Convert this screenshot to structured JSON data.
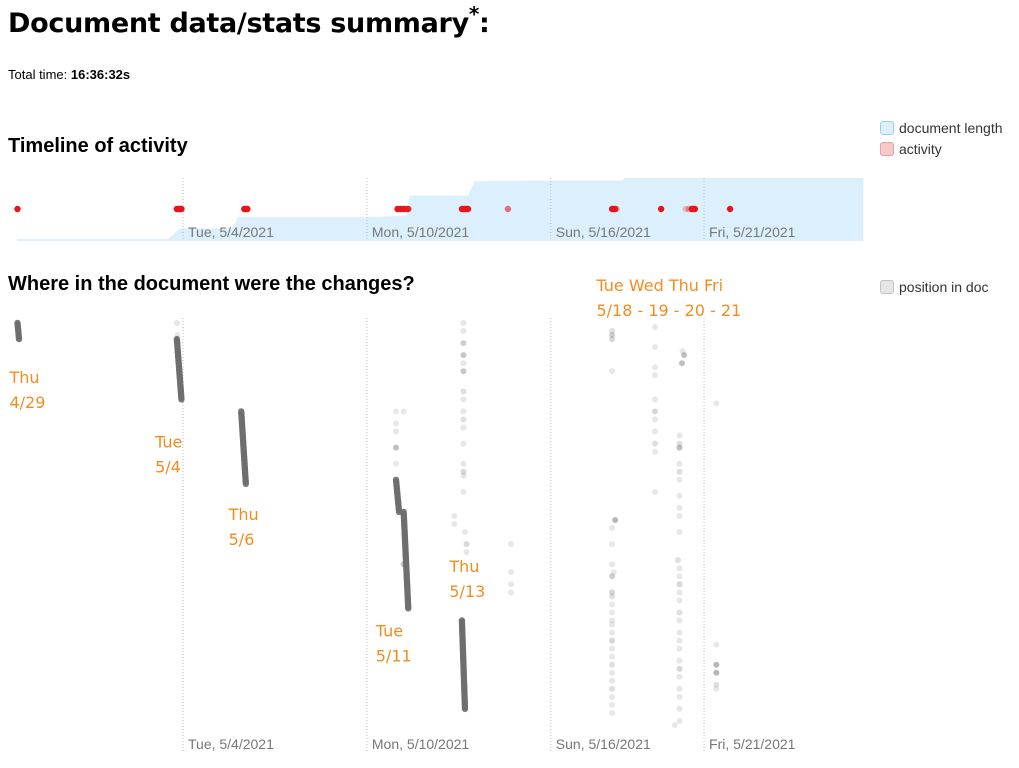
{
  "header": {
    "title": "Document data/stats summary",
    "title_mark": "*",
    "title_suffix": ":",
    "total_time_label": "Total time:",
    "total_time_value": "16:36:32s"
  },
  "sections": {
    "timeline_title": "Timeline of activity",
    "position_title": "Where in the document were the changes?"
  },
  "colors": {
    "doc_length_fill": "#dbf0fc",
    "doc_length_border": "#9fcbe6",
    "activity": "#e8141c",
    "activity_border": "#e8a0a0",
    "activity_fill": "#f9c9c9",
    "position": "#6e6e6e",
    "position_swatch": "#e6e6e6",
    "annotation": "#f28c1e",
    "gridline": "#bbbbbb",
    "tick_text": "#777777"
  },
  "chart_data": [
    {
      "type": "area",
      "name": "timeline-of-activity",
      "title": "Timeline of activity",
      "x_unit": "days relative to Tue 5/4/2021",
      "xlim": [
        -5.4,
        22.2
      ],
      "ticks": [
        {
          "x": 0,
          "label": "Tue, 5/4/2021"
        },
        {
          "x": 6,
          "label": "Mon, 5/10/2021"
        },
        {
          "x": 12,
          "label": "Sun, 5/16/2021"
        },
        {
          "x": 17,
          "label": "Fri, 5/21/2021"
        }
      ],
      "legend": [
        {
          "label": "document length",
          "key": "doc_length"
        },
        {
          "label": "activity",
          "key": "activity"
        }
      ],
      "legend_position": "top-right",
      "doc_length": {
        "ylim": [
          0,
          1
        ],
        "points": [
          [
            -5.4,
            0.03
          ],
          [
            -0.5,
            0.03
          ],
          [
            -0.1,
            0.2
          ],
          [
            1.6,
            0.2
          ],
          [
            1.8,
            0.38
          ],
          [
            6.0,
            0.38
          ],
          [
            7.3,
            0.4
          ],
          [
            7.4,
            0.72
          ],
          [
            9.3,
            0.72
          ],
          [
            9.5,
            0.95
          ],
          [
            11.5,
            0.96
          ],
          [
            14.3,
            0.96
          ],
          [
            14.4,
            1.0
          ],
          [
            22.2,
            1.0
          ]
        ]
      },
      "activity": {
        "x": [
          -5.4,
          -0.2,
          -0.15,
          -0.1,
          -0.05,
          2.0,
          2.05,
          2.1,
          7.0,
          7.1,
          7.2,
          7.3,
          7.35,
          9.1,
          9.15,
          9.2,
          9.25,
          9.3,
          10.6,
          14.0,
          14.05,
          14.1,
          14.15,
          15.6,
          16.4,
          16.5,
          16.6,
          16.65,
          16.7,
          17.85
        ],
        "opacity": [
          1,
          1,
          1,
          1,
          1,
          1,
          1,
          1,
          1,
          1,
          1,
          0.85,
          0.85,
          1,
          1,
          1,
          1,
          1,
          0.6,
          1,
          1,
          1,
          0.3,
          1,
          0.25,
          0.35,
          1,
          1,
          1,
          1
        ]
      }
    },
    {
      "type": "scatter",
      "name": "position-in-document",
      "title": "Where in the document were the changes?",
      "x_unit": "days relative to Tue 5/4/2021",
      "y_unit": "position in doc (0 = top, 1 = bottom)",
      "xlim": [
        -5.4,
        22.2
      ],
      "ylim": [
        0,
        1
      ],
      "ticks": [
        {
          "x": 0,
          "label": "Tue, 5/4/2021"
        },
        {
          "x": 6,
          "label": "Mon, 5/10/2021"
        },
        {
          "x": 12,
          "label": "Sun, 5/16/2021"
        },
        {
          "x": 17,
          "label": "Fri, 5/21/2021"
        }
      ],
      "legend": [
        {
          "label": "position in doc",
          "key": "position"
        }
      ],
      "legend_position": "top-right",
      "runs": [
        {
          "x0": -5.4,
          "x1": -5.35,
          "y0": 0.0,
          "y1": 0.04,
          "n": 10,
          "alpha": 0.9
        },
        {
          "x0": -0.2,
          "x1": -0.05,
          "y0": 0.04,
          "y1": 0.19,
          "n": 40,
          "alpha": 0.9
        },
        {
          "x0": 1.9,
          "x1": 2.05,
          "y0": 0.22,
          "y1": 0.4,
          "n": 45,
          "alpha": 0.9
        },
        {
          "x0": 6.95,
          "x1": 7.05,
          "y0": 0.39,
          "y1": 0.47,
          "n": 20,
          "alpha": 0.9
        },
        {
          "x0": 7.2,
          "x1": 7.35,
          "y0": 0.47,
          "y1": 0.71,
          "n": 60,
          "alpha": 0.9
        },
        {
          "x0": 9.1,
          "x1": 9.2,
          "y0": 0.74,
          "y1": 0.96,
          "n": 55,
          "alpha": 0.9
        }
      ],
      "points": [
        [
          -0.2,
          0.0,
          0.3
        ],
        [
          -0.18,
          0.03,
          0.3
        ],
        [
          6.95,
          0.22,
          0.3
        ],
        [
          6.95,
          0.25,
          0.3
        ],
        [
          6.95,
          0.27,
          0.3
        ],
        [
          7.2,
          0.22,
          0.3
        ],
        [
          6.95,
          0.31,
          0.8
        ],
        [
          6.95,
          0.35,
          0.3
        ],
        [
          7.25,
          0.58,
          0.3
        ],
        [
          7.2,
          0.6,
          0.8
        ],
        [
          9.15,
          0.0,
          0.3
        ],
        [
          9.15,
          0.02,
          0.3
        ],
        [
          9.15,
          0.05,
          0.6
        ],
        [
          9.15,
          0.08,
          0.7
        ],
        [
          9.15,
          0.1,
          0.3
        ],
        [
          9.15,
          0.12,
          0.7
        ],
        [
          9.15,
          0.17,
          0.4
        ],
        [
          9.15,
          0.19,
          0.3
        ],
        [
          9.15,
          0.22,
          0.3
        ],
        [
          9.15,
          0.24,
          0.4
        ],
        [
          9.15,
          0.26,
          0.3
        ],
        [
          9.15,
          0.3,
          0.3
        ],
        [
          9.15,
          0.35,
          0.3
        ],
        [
          9.15,
          0.37,
          0.5
        ],
        [
          9.15,
          0.38,
          0.3
        ],
        [
          9.15,
          0.42,
          0.3
        ],
        [
          8.85,
          0.48,
          0.3
        ],
        [
          8.85,
          0.5,
          0.3
        ],
        [
          9.2,
          0.52,
          0.3
        ],
        [
          9.25,
          0.55,
          0.5
        ],
        [
          9.25,
          0.57,
          0.3
        ],
        [
          10.7,
          0.55,
          0.3
        ],
        [
          10.7,
          0.62,
          0.3
        ],
        [
          10.7,
          0.65,
          0.3
        ],
        [
          10.7,
          0.67,
          0.3
        ],
        [
          14.0,
          0.02,
          0.4
        ],
        [
          14.0,
          0.03,
          0.6
        ],
        [
          14.0,
          0.04,
          0.5
        ],
        [
          14.0,
          0.12,
          0.3
        ],
        [
          14.1,
          0.49,
          0.9
        ],
        [
          14.0,
          0.51,
          0.3
        ],
        [
          14.0,
          0.55,
          0.3
        ],
        [
          14.0,
          0.6,
          0.3
        ],
        [
          14.05,
          0.62,
          0.3
        ],
        [
          14.0,
          0.63,
          0.6
        ],
        [
          14.0,
          0.67,
          0.5
        ],
        [
          14.0,
          0.68,
          0.4
        ],
        [
          14.0,
          0.7,
          0.3
        ],
        [
          14.0,
          0.72,
          0.3
        ],
        [
          14.0,
          0.74,
          0.3
        ],
        [
          14.0,
          0.75,
          0.3
        ],
        [
          14.0,
          0.77,
          0.3
        ],
        [
          14.0,
          0.79,
          0.5
        ],
        [
          14.0,
          0.81,
          0.3
        ],
        [
          14.0,
          0.83,
          0.3
        ],
        [
          14.0,
          0.85,
          0.4
        ],
        [
          14.0,
          0.87,
          0.3
        ],
        [
          14.0,
          0.89,
          0.3
        ],
        [
          14.0,
          0.91,
          0.4
        ],
        [
          14.0,
          0.93,
          0.3
        ],
        [
          14.0,
          0.95,
          0.3
        ],
        [
          14.0,
          0.97,
          0.3
        ],
        [
          15.4,
          0.01,
          0.3
        ],
        [
          15.4,
          0.06,
          0.3
        ],
        [
          15.4,
          0.11,
          0.3
        ],
        [
          15.4,
          0.13,
          0.3
        ],
        [
          15.4,
          0.19,
          0.3
        ],
        [
          15.4,
          0.22,
          0.5
        ],
        [
          15.4,
          0.24,
          0.3
        ],
        [
          15.4,
          0.27,
          0.3
        ],
        [
          15.4,
          0.3,
          0.4
        ],
        [
          15.4,
          0.32,
          0.3
        ],
        [
          15.4,
          0.42,
          0.3
        ],
        [
          16.3,
          0.07,
          0.3
        ],
        [
          16.35,
          0.08,
          0.8
        ],
        [
          16.28,
          0.1,
          0.8
        ],
        [
          16.2,
          0.28,
          0.3
        ],
        [
          16.2,
          0.3,
          0.4
        ],
        [
          16.2,
          0.31,
          0.8
        ],
        [
          16.2,
          0.35,
          0.3
        ],
        [
          16.2,
          0.37,
          0.4
        ],
        [
          16.2,
          0.39,
          0.3
        ],
        [
          16.2,
          0.43,
          0.3
        ],
        [
          16.2,
          0.46,
          0.3
        ],
        [
          16.2,
          0.48,
          0.3
        ],
        [
          16.2,
          0.52,
          0.3
        ],
        [
          16.15,
          0.59,
          0.4
        ],
        [
          16.2,
          0.61,
          0.3
        ],
        [
          16.2,
          0.63,
          0.3
        ],
        [
          16.2,
          0.65,
          0.5
        ],
        [
          16.2,
          0.67,
          0.3
        ],
        [
          16.2,
          0.69,
          0.3
        ],
        [
          16.2,
          0.72,
          0.4
        ],
        [
          16.2,
          0.74,
          0.3
        ],
        [
          16.2,
          0.77,
          0.3
        ],
        [
          16.2,
          0.79,
          0.3
        ],
        [
          16.2,
          0.81,
          0.3
        ],
        [
          16.2,
          0.84,
          0.3
        ],
        [
          16.2,
          0.86,
          0.5
        ],
        [
          16.2,
          0.88,
          0.3
        ],
        [
          16.2,
          0.91,
          0.3
        ],
        [
          16.2,
          0.93,
          0.3
        ],
        [
          16.2,
          0.96,
          0.3
        ],
        [
          16.2,
          0.99,
          0.3
        ],
        [
          16.05,
          1.0,
          0.3
        ],
        [
          17.4,
          0.2,
          0.3
        ],
        [
          17.4,
          0.8,
          0.3
        ],
        [
          17.4,
          0.85,
          0.9
        ],
        [
          17.4,
          0.87,
          0.9
        ],
        [
          17.4,
          0.9,
          0.4
        ],
        [
          17.4,
          0.91,
          0.3
        ]
      ],
      "annotations": [
        {
          "x": -5.4,
          "y": 0.11,
          "lines": [
            "Thu",
            "4/29"
          ]
        },
        {
          "x": -0.65,
          "y": 0.27,
          "lines": [
            "Tue",
            "5/4"
          ]
        },
        {
          "x": 1.75,
          "y": 0.45,
          "lines": [
            "Thu",
            "5/6"
          ]
        },
        {
          "x": 6.55,
          "y": 0.74,
          "lines": [
            "Tue",
            "5/11"
          ]
        },
        {
          "x": 8.95,
          "y": 0.58,
          "lines": [
            "Thu",
            "5/13"
          ]
        },
        {
          "x": 13.75,
          "y": -0.12,
          "lines": [
            "Tue  Wed  Thu  Fri",
            "5/18 - 19 - 20 - 21"
          ]
        }
      ]
    }
  ]
}
